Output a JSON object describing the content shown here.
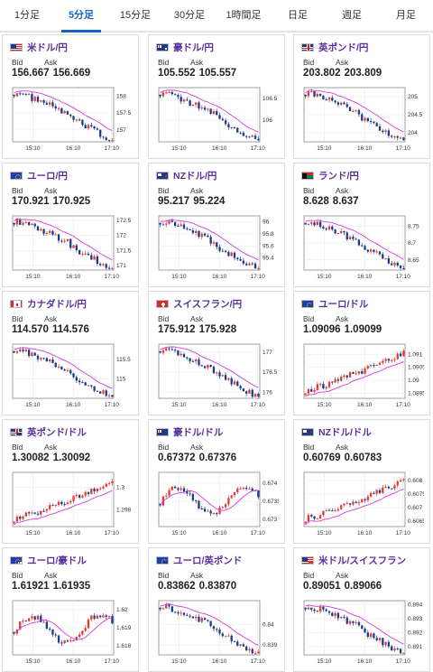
{
  "tabs": [
    "1分足",
    "5分足",
    "15分足",
    "30分足",
    "1時間足",
    "日足",
    "週足",
    "月足"
  ],
  "active_tab": 1,
  "labels": {
    "bid": "Bid",
    "ask": "Ask"
  },
  "colors": {
    "up": "#e53935",
    "down": "#1e3a8a",
    "ma": "#d63be0",
    "pair": "#5b2f9c",
    "active_tab": "#1565c0"
  },
  "cards": [
    {
      "pair": "米ドル/円",
      "flag": "us",
      "bid": "156.667",
      "ask": "156.669",
      "x_ticks": [
        "15:10",
        "16:10",
        "17:10"
      ],
      "y_ticks": [
        "158",
        "157.5",
        "157"
      ],
      "y_range": [
        156.65,
        158.25
      ],
      "trend": "down"
    },
    {
      "pair": "豪ドル/円",
      "flag": "au",
      "bid": "105.552",
      "ask": "105.557",
      "x_ticks": [
        "15:10",
        "16:10",
        "17:10"
      ],
      "y_ticks": [
        "106.5",
        "106"
      ],
      "y_range": [
        105.5,
        106.75
      ],
      "trend": "down"
    },
    {
      "pair": "英ポンド/円",
      "flag": "gb",
      "bid": "203.802",
      "ask": "203.809",
      "x_ticks": [
        "15:10",
        "16:10",
        "17:10"
      ],
      "y_ticks": [
        "205",
        "204.5",
        "204"
      ],
      "y_range": [
        203.75,
        205.25
      ],
      "trend": "down"
    },
    {
      "pair": "ユーロ/円",
      "flag": "eu",
      "bid": "170.921",
      "ask": "170.925",
      "x_ticks": [
        "15:10",
        "16:10",
        "17:10"
      ],
      "y_ticks": [
        "172.5",
        "172",
        "171.5",
        "171"
      ],
      "y_range": [
        170.85,
        172.65
      ],
      "trend": "down"
    },
    {
      "pair": "NZドル/円",
      "flag": "nz",
      "bid": "95.217",
      "ask": "95.224",
      "x_ticks": [
        "15:10",
        "16:10",
        "17:10"
      ],
      "y_ticks": [
        "96",
        "95.8",
        "95.6",
        "95.4"
      ],
      "y_range": [
        95.2,
        96.1
      ],
      "trend": "down"
    },
    {
      "pair": "ランド/円",
      "flag": "za",
      "bid": "8.628",
      "ask": "8.637",
      "x_ticks": [
        "15:10",
        "16:10",
        "17:10"
      ],
      "y_ticks": [
        "8.75",
        "8.7",
        "8.65"
      ],
      "y_range": [
        8.62,
        8.78
      ],
      "trend": "down"
    },
    {
      "pair": "カナダドル/円",
      "flag": "ca",
      "bid": "114.570",
      "ask": "114.576",
      "x_ticks": [
        "15:10",
        "16:10",
        "17:10"
      ],
      "y_ticks": [
        "115.5",
        "115"
      ],
      "y_range": [
        114.5,
        115.9
      ],
      "trend": "down"
    },
    {
      "pair": "スイスフラン/円",
      "flag": "ch",
      "bid": "175.912",
      "ask": "175.928",
      "x_ticks": [
        "15:10",
        "16:10",
        "17:10"
      ],
      "y_ticks": [
        "177",
        "176.5",
        "176"
      ],
      "y_range": [
        175.85,
        177.2
      ],
      "trend": "down"
    },
    {
      "pair": "ユーロ/ドル",
      "flag": "eu-us",
      "bid": "1.09096",
      "ask": "1.09099",
      "x_ticks": [
        "15:10",
        "16:10",
        "17:10"
      ],
      "y_ticks": [
        "1.091",
        "1.0905",
        "1.09",
        "1.0895"
      ],
      "y_range": [
        1.0893,
        1.0914
      ],
      "trend": "up"
    },
    {
      "pair": "英ポンド/ドル",
      "flag": "gb-us",
      "bid": "1.30082",
      "ask": "1.30092",
      "x_ticks": [
        "15:10",
        "16:10",
        "17:10"
      ],
      "y_ticks": [
        "1.3",
        "1.298"
      ],
      "y_range": [
        1.2965,
        1.3013
      ],
      "trend": "up"
    },
    {
      "pair": "豪ドル/ドル",
      "flag": "au-us",
      "bid": "0.67372",
      "ask": "0.67376",
      "x_ticks": [
        "15:10",
        "16:10",
        "17:10"
      ],
      "y_ticks": [
        "0.674",
        "0.6735",
        "0.673"
      ],
      "y_range": [
        0.6728,
        0.6743
      ],
      "trend": "mixed"
    },
    {
      "pair": "NZドル/ドル",
      "flag": "nz-us",
      "bid": "0.60769",
      "ask": "0.60783",
      "x_ticks": [
        "15:10",
        "16:10",
        "17:10"
      ],
      "y_ticks": [
        "0.608",
        "0.6075",
        "0.607",
        "0.6065"
      ],
      "y_range": [
        0.6063,
        0.6083
      ],
      "trend": "up"
    },
    {
      "pair": "ユーロ/豪ドル",
      "flag": "eu-au",
      "bid": "1.61921",
      "ask": "1.61935",
      "x_ticks": [
        "15:10",
        "16:10",
        "17:10"
      ],
      "y_ticks": [
        "1.62",
        "1.619",
        "1.618"
      ],
      "y_range": [
        1.6175,
        1.6205
      ],
      "trend": "mixed"
    },
    {
      "pair": "ユーロ/英ポンド",
      "flag": "eu-gb",
      "bid": "0.83862",
      "ask": "0.83870",
      "x_ticks": [
        "15:10",
        "16:10",
        "17:10"
      ],
      "y_ticks": [
        "0.84",
        "0.839"
      ],
      "y_range": [
        0.8385,
        0.8412
      ],
      "trend": "down"
    },
    {
      "pair": "米ドル/スイスフラン",
      "flag": "us-ch",
      "bid": "0.89051",
      "ask": "0.89066",
      "x_ticks": [
        "15:10",
        "16:10",
        "17:10"
      ],
      "y_ticks": [
        "0.894",
        "0.893",
        "0.892",
        "0.891"
      ],
      "y_range": [
        0.8904,
        0.8943
      ],
      "trend": "down"
    }
  ]
}
